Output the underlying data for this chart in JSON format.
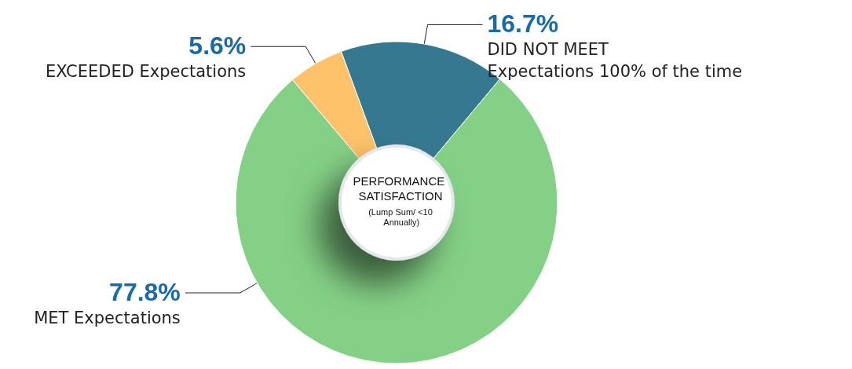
{
  "chart_data": {
    "type": "donut",
    "title": "PERFORMANCE SATISFACTION",
    "subtitle": "(Lump Sum/ <10 Annually)",
    "categories": [
      "DID NOT MEET\nExpectations 100% of the time",
      "MET Expectations",
      "EXCEEDED Expectations"
    ],
    "values": [
      16.7,
      77.8,
      5.6
    ],
    "value_labels": [
      "16.7%",
      "77.8%",
      "5.6%"
    ],
    "colors": [
      "#36788f",
      "#84d086",
      "#fdc26a"
    ],
    "legend": false
  }
}
